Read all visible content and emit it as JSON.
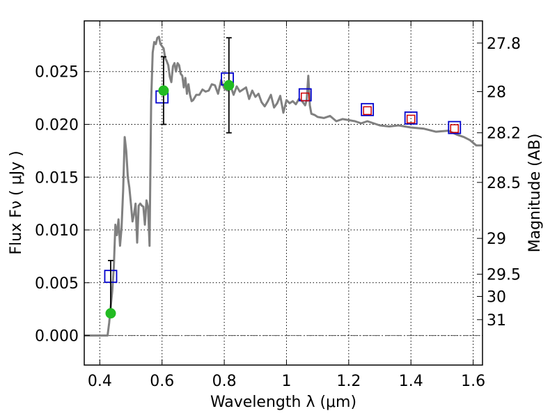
{
  "chart_data": {
    "type": "line",
    "xlabel": "Wavelength  λ (μm)",
    "ylabel": "Flux  Fν  ( μJy )",
    "y2label": "Magnitude (AB)",
    "xlim": [
      0.35,
      1.63
    ],
    "ylim": [
      -0.0028,
      0.0298
    ],
    "grid": true,
    "x_ticks": [
      0.4,
      0.6,
      0.8,
      1.0,
      1.2,
      1.4,
      1.6
    ],
    "x_tick_labels": [
      "0.4",
      "0.6",
      "0.8",
      "1",
      "1.2",
      "1.4",
      "1.6"
    ],
    "y_ticks": [
      0.0,
      0.005,
      0.01,
      0.015,
      0.02,
      0.025
    ],
    "y_tick_labels": [
      "0.000",
      "0.005",
      "0.010",
      "0.015",
      "0.020",
      "0.025"
    ],
    "y2_ticks": [
      {
        "label": "27.8",
        "flux": 0.0277
      },
      {
        "label": "28",
        "flux": 0.0231
      },
      {
        "label": "28.2",
        "flux": 0.0192
      },
      {
        "label": "28.5",
        "flux": 0.0145
      },
      {
        "label": "29",
        "flux": 0.0092
      },
      {
        "label": "29.5",
        "flux": 0.0058
      },
      {
        "label": "30",
        "flux": 0.0037
      },
      {
        "label": "31",
        "flux": 0.0015
      }
    ],
    "series": [
      {
        "style": "line",
        "color": "#808080",
        "x": [
          0.35,
          0.42,
          0.425,
          0.43,
          0.44,
          0.445,
          0.45,
          0.455,
          0.46,
          0.465,
          0.47,
          0.475,
          0.48,
          0.485,
          0.49,
          0.495,
          0.5,
          0.505,
          0.51,
          0.515,
          0.52,
          0.525,
          0.53,
          0.535,
          0.54,
          0.545,
          0.55,
          0.555,
          0.56,
          0.565,
          0.57,
          0.575,
          0.58,
          0.585,
          0.59,
          0.595,
          0.6,
          0.605,
          0.61,
          0.615,
          0.62,
          0.625,
          0.63,
          0.635,
          0.64,
          0.645,
          0.65,
          0.655,
          0.66,
          0.665,
          0.67,
          0.675,
          0.68,
          0.685,
          0.69,
          0.695,
          0.7,
          0.71,
          0.72,
          0.73,
          0.74,
          0.75,
          0.76,
          0.77,
          0.78,
          0.79,
          0.8,
          0.81,
          0.82,
          0.83,
          0.84,
          0.85,
          0.86,
          0.87,
          0.88,
          0.89,
          0.9,
          0.91,
          0.92,
          0.93,
          0.94,
          0.95,
          0.96,
          0.97,
          0.98,
          0.99,
          1.0,
          1.01,
          1.02,
          1.03,
          1.04,
          1.05,
          1.06,
          1.065,
          1.07,
          1.075,
          1.08,
          1.09,
          1.1,
          1.12,
          1.14,
          1.16,
          1.18,
          1.2,
          1.22,
          1.24,
          1.26,
          1.28,
          1.3,
          1.33,
          1.36,
          1.4,
          1.44,
          1.48,
          1.52,
          1.55,
          1.57,
          1.59,
          1.61,
          1.63
        ],
        "y": [
          0.0,
          0.0,
          0.0,
          0.0012,
          0.0042,
          0.0065,
          0.0105,
          0.0095,
          0.011,
          0.0085,
          0.0102,
          0.0138,
          0.0188,
          0.0175,
          0.015,
          0.014,
          0.0125,
          0.0108,
          0.0115,
          0.0125,
          0.0088,
          0.0123,
          0.0125,
          0.0123,
          0.0122,
          0.0105,
          0.0128,
          0.0122,
          0.0085,
          0.0222,
          0.0268,
          0.0278,
          0.0276,
          0.0282,
          0.0283,
          0.0276,
          0.0274,
          0.0272,
          0.0263,
          0.026,
          0.0256,
          0.0245,
          0.024,
          0.0255,
          0.0258,
          0.025,
          0.0258,
          0.0256,
          0.0248,
          0.0246,
          0.0235,
          0.0244,
          0.0229,
          0.0238,
          0.0228,
          0.0222,
          0.0223,
          0.0228,
          0.0228,
          0.0233,
          0.0231,
          0.0232,
          0.0238,
          0.0237,
          0.0229,
          0.0242,
          0.0234,
          0.0232,
          0.0237,
          0.0228,
          0.0236,
          0.0231,
          0.0233,
          0.0235,
          0.0224,
          0.0232,
          0.0226,
          0.0229,
          0.0221,
          0.0217,
          0.0222,
          0.0228,
          0.0216,
          0.022,
          0.0227,
          0.0211,
          0.0223,
          0.022,
          0.0222,
          0.0219,
          0.0224,
          0.0222,
          0.0218,
          0.0223,
          0.0246,
          0.0218,
          0.021,
          0.0209,
          0.0207,
          0.0206,
          0.0208,
          0.0203,
          0.0205,
          0.0204,
          0.0203,
          0.0201,
          0.0203,
          0.0201,
          0.0199,
          0.0198,
          0.0199,
          0.0197,
          0.0196,
          0.0193,
          0.0194,
          0.019,
          0.0188,
          0.0185,
          0.018,
          0.018
        ]
      },
      {
        "style": "open-square",
        "color": "#0000cc",
        "x": [
          0.435,
          0.6,
          0.81,
          1.06,
          1.26,
          1.4,
          1.54
        ],
        "y": [
          0.0056,
          0.0226,
          0.0243,
          0.0228,
          0.0214,
          0.0206,
          0.0197
        ]
      },
      {
        "style": "small-open-square",
        "color": "#d00000",
        "x": [
          1.06,
          1.26,
          1.4,
          1.54
        ],
        "y": [
          0.0226,
          0.0213,
          0.0205,
          0.0196
        ]
      },
      {
        "style": "filled-circle",
        "color": "#22bb22",
        "x": [
          0.435,
          0.605,
          0.815
        ],
        "y": [
          0.0021,
          0.0232,
          0.0237
        ],
        "err_low": [
          0.0021,
          0.02,
          0.0192
        ],
        "err_high": [
          0.0071,
          0.0264,
          0.0282
        ]
      }
    ]
  }
}
